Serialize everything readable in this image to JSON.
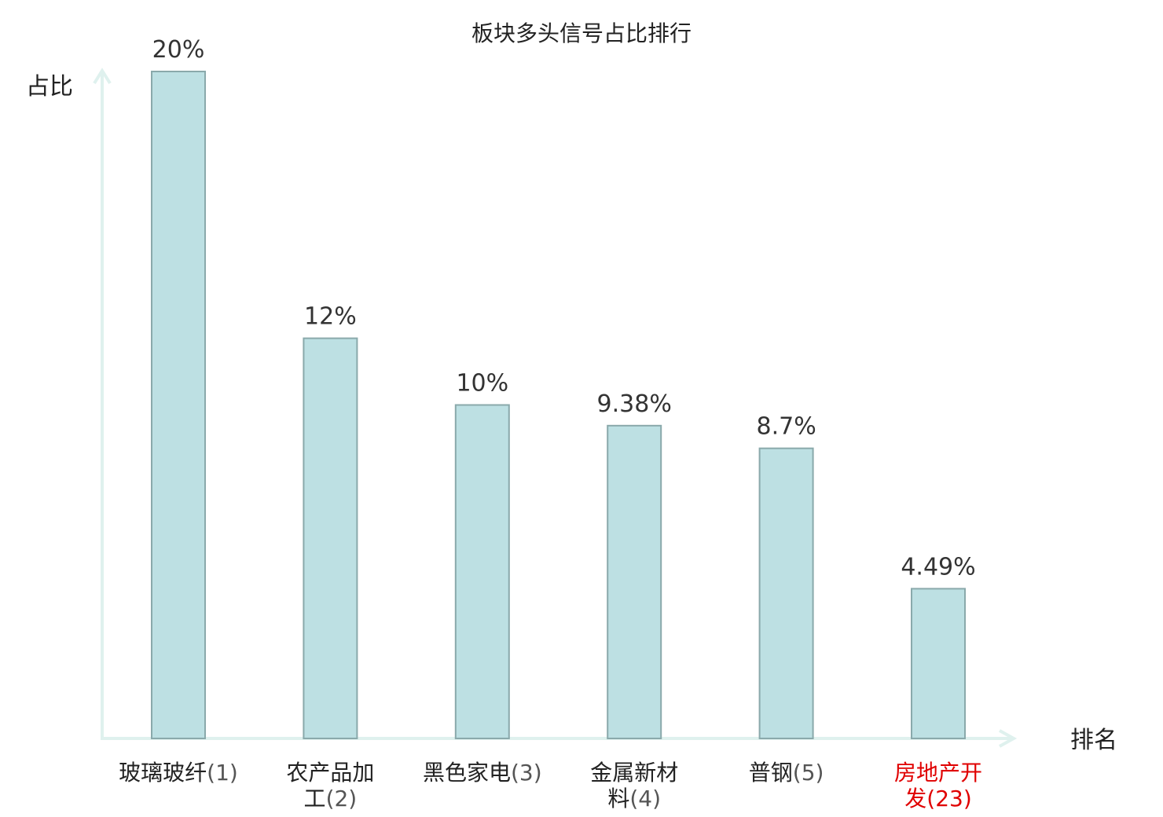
{
  "chart_data": {
    "type": "bar",
    "title": "板块多头信号占比排行",
    "ylabel": "占比",
    "xlabel": "排名",
    "ylim": [
      0,
      20
    ],
    "grid": false,
    "categories": [
      {
        "lines": [
          "玻璃玻纤"
        ],
        "rank": "(1)",
        "highlight": false
      },
      {
        "lines": [
          "农产品加",
          "工"
        ],
        "rank": "(2)",
        "highlight": false
      },
      {
        "lines": [
          "黑色家电"
        ],
        "rank": "(3)",
        "highlight": false
      },
      {
        "lines": [
          "金属新材",
          "料"
        ],
        "rank": "(4)",
        "highlight": false
      },
      {
        "lines": [
          "普钢"
        ],
        "rank": "(5)",
        "highlight": false
      },
      {
        "lines": [
          "房地产开",
          "发"
        ],
        "rank": "(23)",
        "highlight": true
      }
    ],
    "values": [
      20,
      12,
      10,
      9.38,
      8.7,
      4.49
    ],
    "value_labels": [
      "20%",
      "12%",
      "10%",
      "9.38%",
      "8.7%",
      "4.49%"
    ],
    "colors": {
      "bar_fill": "#bde0e3",
      "bar_stroke": "#8aa9ab",
      "axis": "#dff1ee",
      "highlight": "#e00000"
    }
  }
}
